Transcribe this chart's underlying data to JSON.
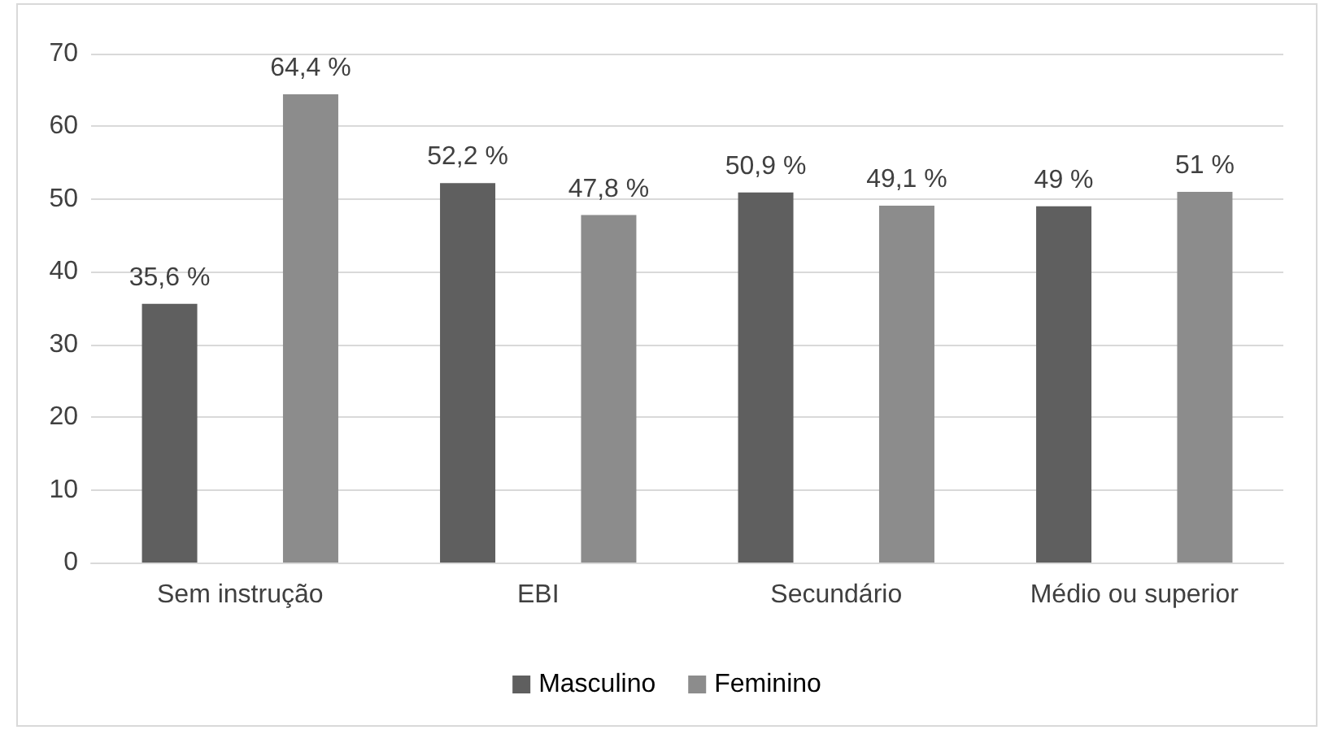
{
  "chart_data": {
    "type": "bar",
    "categories": [
      "Sem instrução",
      "EBI",
      "Secundário",
      "Médio ou superior"
    ],
    "series": [
      {
        "name": "Masculino",
        "color": "#5f5f5f",
        "values": [
          35.6,
          52.2,
          50.9,
          49
        ],
        "value_labels": [
          "35,6 %",
          "52,2 %",
          "50,9 %",
          "49 %"
        ]
      },
      {
        "name": "Feminino",
        "color": "#8c8c8c",
        "values": [
          64.4,
          47.8,
          49.1,
          51
        ],
        "value_labels": [
          "64,4 %",
          "47,8 %",
          "49,1 %",
          "51 %"
        ]
      }
    ],
    "ylim": [
      0,
      70
    ],
    "yticks": [
      0,
      10,
      20,
      30,
      40,
      50,
      60,
      70
    ],
    "grid": "y",
    "legend": "bottom"
  }
}
